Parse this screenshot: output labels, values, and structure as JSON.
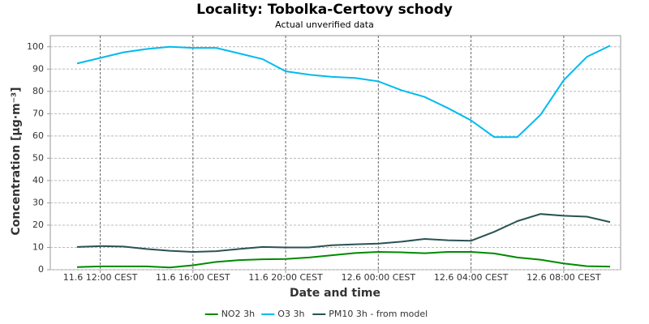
{
  "chart_data": {
    "type": "line",
    "title": "Locality: Tobolka-Certovy schody",
    "subtitle": "Actual unverified data",
    "x_label": "Date and time",
    "y_label": "Concentration [µg·m⁻³]",
    "categories": [
      null,
      "11.6 12:00 CEST",
      null,
      null,
      null,
      "11.6 16:00 CEST",
      null,
      null,
      null,
      "11.6 20:00 CEST",
      null,
      null,
      null,
      "12.6 00:00 CEST",
      null,
      null,
      null,
      "12.6 04:00 CEST",
      null,
      null,
      null,
      "12.6 08:00 CEST",
      null,
      null
    ],
    "series": [
      {
        "name": "NO2 3h",
        "color": "#008a00",
        "values": [
          1.2,
          1.5,
          1.5,
          1.5,
          1.0,
          2.0,
          3.5,
          4.3,
          4.7,
          4.8,
          5.5,
          6.5,
          7.5,
          8.0,
          7.8,
          7.4,
          8.0,
          8.0,
          7.3,
          5.5,
          4.5,
          2.8,
          1.6,
          1.4
        ]
      },
      {
        "name": "O3 3h",
        "color": "#00bbee",
        "values": [
          92.5,
          95,
          97.5,
          99,
          100,
          99.5,
          99.5,
          97,
          94.5,
          89,
          87.5,
          86.5,
          86,
          84.5,
          80.5,
          77.5,
          72.5,
          67,
          59.5,
          59.5,
          69.5,
          85,
          95.5,
          100.5
        ]
      },
      {
        "name": "PM10 3h - from model",
        "color": "#2a5252",
        "values": [
          10.2,
          10.6,
          10.4,
          9.3,
          8.5,
          8.0,
          8.3,
          9.3,
          10.2,
          10.0,
          10.0,
          11.0,
          11.4,
          11.7,
          12.6,
          13.8,
          13.2,
          13.0,
          17.0,
          21.8,
          25.0,
          24.2,
          23.8,
          21.4
        ]
      }
    ],
    "ylim": [
      0,
      105
    ],
    "yticks": [
      0,
      10,
      20,
      30,
      40,
      50,
      60,
      70,
      80,
      90,
      100
    ],
    "grid": true,
    "legend": "bottom"
  }
}
